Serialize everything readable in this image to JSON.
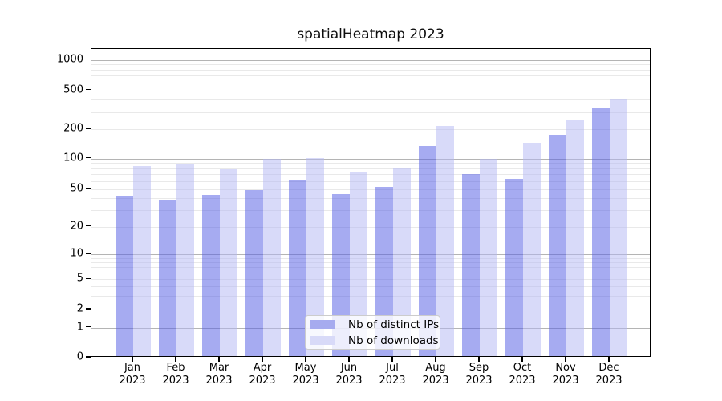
{
  "title": "spatialHeatmap 2023",
  "chart_data": {
    "type": "bar",
    "title": "spatialHeatmap 2023",
    "categories": [
      "Jan",
      "Feb",
      "Mar",
      "Apr",
      "May",
      "Jun",
      "Jul",
      "Aug",
      "Sep",
      "Oct",
      "Nov",
      "Dec"
    ],
    "year": "2023",
    "series": [
      {
        "name": "Nb of distinct IPs",
        "bar_color": "rgba(84,94,228,0.52)",
        "legend_color": "#a6abef",
        "values": [
          41,
          37,
          42,
          47,
          60,
          43,
          51,
          130,
          68,
          61,
          170,
          315
        ]
      },
      {
        "name": "Nb of downloads",
        "bar_color": "rgba(178,182,243,0.5)",
        "legend_color": "#d8daf8",
        "values": [
          81,
          84,
          76,
          95,
          97,
          70,
          77,
          209,
          95,
          140,
          239,
          394
        ]
      }
    ],
    "y_axis": {
      "scale": "log-like (symlog)",
      "tick_values": [
        0,
        1,
        2,
        5,
        10,
        20,
        50,
        100,
        200,
        500,
        1000
      ],
      "range": [
        0,
        1000
      ],
      "major_grid_values": [
        1,
        10,
        100,
        1000
      ]
    },
    "xlabel": "",
    "ylabel": "",
    "grid": true,
    "legend_position": "lower center"
  },
  "colors": {
    "background": "#ffffff",
    "major_grid": "#b4b4b4",
    "minor_grid": "#e9e9e9",
    "axis": "#000000",
    "text": "#000000"
  }
}
